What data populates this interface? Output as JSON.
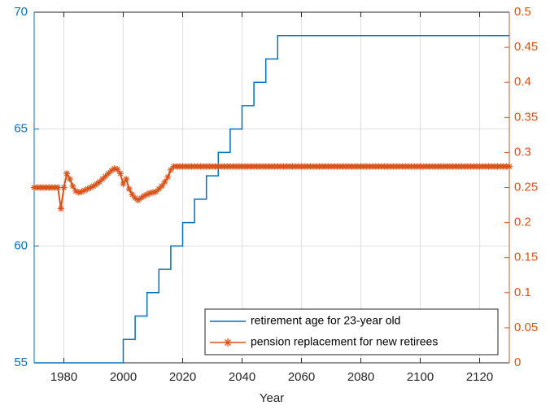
{
  "chart_data": {
    "type": "line",
    "xlabel": "Year",
    "xlim": [
      1970,
      2130
    ],
    "xticks": [
      1980,
      2000,
      2020,
      2040,
      2060,
      2080,
      2100,
      2120
    ],
    "ylim": [
      55,
      70
    ],
    "yticks": [
      55,
      60,
      65,
      70
    ],
    "y2lim": [
      0,
      0.5
    ],
    "y2ticks": [
      0,
      0.05,
      0.1,
      0.15,
      0.2,
      0.25,
      0.3,
      0.35,
      0.4,
      0.45,
      0.5
    ],
    "grid": true,
    "legend": "lower right",
    "series": [
      {
        "name": "retirement age for 23-year old",
        "color": "#0072BD",
        "marker": "none",
        "x": [
          1970,
          2000,
          2000,
          2004,
          2004,
          2008,
          2008,
          2012,
          2012,
          2016,
          2016,
          2020,
          2020,
          2024,
          2024,
          2028,
          2028,
          2032,
          2032,
          2036,
          2036,
          2040,
          2040,
          2044,
          2044,
          2048,
          2048,
          2052,
          2052,
          2130
        ],
        "values": [
          55,
          55,
          56,
          56,
          57,
          57,
          58,
          58,
          59,
          59,
          60,
          60,
          61,
          61,
          62,
          62,
          63,
          63,
          64,
          64,
          65,
          65,
          66,
          66,
          67,
          67,
          68,
          68,
          69,
          69
        ]
      },
      {
        "name": "pension replacement for new retirees",
        "color": "#D95319",
        "marker": "asterisk",
        "axis": "y2",
        "x": [
          1970,
          1971,
          1972,
          1973,
          1974,
          1975,
          1976,
          1977,
          1978,
          1979,
          1980,
          1981,
          1982,
          1983,
          1984,
          1985,
          1986,
          1987,
          1988,
          1989,
          1990,
          1991,
          1992,
          1993,
          1994,
          1995,
          1996,
          1997,
          1998,
          1999,
          2000,
          2001,
          2002,
          2003,
          2004,
          2005,
          2006,
          2007,
          2008,
          2009,
          2010,
          2011,
          2012,
          2013,
          2014,
          2015,
          2016,
          2017,
          2018,
          2019,
          2020,
          2021,
          2022,
          2023,
          2024,
          2025,
          2026,
          2027,
          2028,
          2029,
          2030,
          2031,
          2032,
          2033,
          2034,
          2035,
          2036,
          2037,
          2038,
          2039,
          2040,
          2041,
          2042,
          2043,
          2044,
          2045,
          2046,
          2047,
          2048,
          2049,
          2050,
          2051,
          2052,
          2053,
          2054,
          2055,
          2056,
          2057,
          2058,
          2059,
          2060,
          2061,
          2062,
          2063,
          2064,
          2065,
          2066,
          2067,
          2068,
          2069,
          2070,
          2071,
          2072,
          2073,
          2074,
          2075,
          2076,
          2077,
          2078,
          2079,
          2080,
          2081,
          2082,
          2083,
          2084,
          2085,
          2086,
          2087,
          2088,
          2089,
          2090,
          2091,
          2092,
          2093,
          2094,
          2095,
          2096,
          2097,
          2098,
          2099,
          2100,
          2101,
          2102,
          2103,
          2104,
          2105,
          2106,
          2107,
          2108,
          2109,
          2110,
          2111,
          2112,
          2113,
          2114,
          2115,
          2116,
          2117,
          2118,
          2119,
          2120,
          2121,
          2122,
          2123,
          2124,
          2125,
          2126,
          2127,
          2128,
          2129,
          2130
        ],
        "values": [
          0.25,
          0.25,
          0.25,
          0.25,
          0.25,
          0.25,
          0.25,
          0.25,
          0.25,
          0.22,
          0.25,
          0.27,
          0.262,
          0.252,
          0.245,
          0.243,
          0.244,
          0.246,
          0.248,
          0.25,
          0.252,
          0.255,
          0.258,
          0.262,
          0.266,
          0.27,
          0.274,
          0.277,
          0.276,
          0.27,
          0.255,
          0.262,
          0.248,
          0.24,
          0.235,
          0.232,
          0.235,
          0.238,
          0.24,
          0.242,
          0.243,
          0.244,
          0.248,
          0.252,
          0.258,
          0.265,
          0.275,
          0.28,
          0.28,
          0.28,
          0.28,
          0.28,
          0.28,
          0.28,
          0.28,
          0.28,
          0.28,
          0.28,
          0.28,
          0.28,
          0.28,
          0.28,
          0.28,
          0.28,
          0.28,
          0.28,
          0.28,
          0.28,
          0.28,
          0.28,
          0.28,
          0.28,
          0.28,
          0.28,
          0.28,
          0.28,
          0.28,
          0.28,
          0.28,
          0.28,
          0.28,
          0.28,
          0.28,
          0.28,
          0.28,
          0.28,
          0.28,
          0.28,
          0.28,
          0.28,
          0.28,
          0.28,
          0.28,
          0.28,
          0.28,
          0.28,
          0.28,
          0.28,
          0.28,
          0.28,
          0.28,
          0.28,
          0.28,
          0.28,
          0.28,
          0.28,
          0.28,
          0.28,
          0.28,
          0.28,
          0.28,
          0.28,
          0.28,
          0.28,
          0.28,
          0.28,
          0.28,
          0.28,
          0.28,
          0.28,
          0.28,
          0.28,
          0.28,
          0.28,
          0.28,
          0.28,
          0.28,
          0.28,
          0.28,
          0.28,
          0.28,
          0.28,
          0.28,
          0.28,
          0.28,
          0.28,
          0.28,
          0.28,
          0.28,
          0.28,
          0.28,
          0.28,
          0.28,
          0.28,
          0.28,
          0.28,
          0.28,
          0.28,
          0.28,
          0.28,
          0.28,
          0.28,
          0.28,
          0.28,
          0.28,
          0.28,
          0.28,
          0.28,
          0.28,
          0.28,
          0.28
        ]
      }
    ]
  }
}
